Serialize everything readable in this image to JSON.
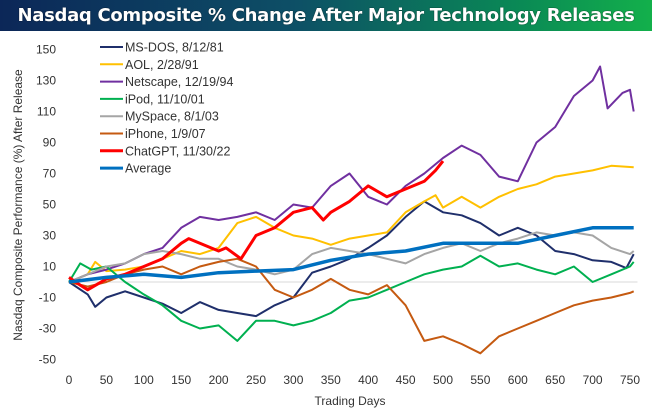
{
  "chart_data": {
    "type": "line",
    "title": "Nasdaq Composite % Change After Major Technology Releases",
    "xlabel": "Trading Days",
    "ylabel": "Nasdaq Composite Performance (%) After Release",
    "xlim": [
      0,
      760
    ],
    "ylim": [
      -50,
      150
    ],
    "xticks": [
      0,
      50,
      100,
      150,
      200,
      250,
      300,
      350,
      400,
      450,
      500,
      550,
      600,
      650,
      700,
      750
    ],
    "yticks": [
      150,
      130,
      110,
      90,
      70,
      50,
      30,
      10,
      -10,
      -30,
      -50
    ],
    "grid": false,
    "zero_line": true,
    "legend": "top-left",
    "series": [
      {
        "name": "MS-DOS, 8/12/81",
        "color": "#1f2f6b",
        "width": 2,
        "x": [
          0,
          25,
          35,
          50,
          75,
          100,
          125,
          150,
          175,
          200,
          225,
          250,
          275,
          300,
          325,
          350,
          375,
          400,
          425,
          450,
          475,
          500,
          525,
          550,
          575,
          600,
          625,
          650,
          675,
          700,
          725,
          745,
          755
        ],
        "y": [
          0,
          -8,
          -16,
          -10,
          -6,
          -10,
          -14,
          -20,
          -13,
          -18,
          -20,
          -22,
          -15,
          -10,
          6,
          10,
          15,
          22,
          30,
          42,
          52,
          45,
          43,
          38,
          30,
          35,
          30,
          20,
          18,
          14,
          13,
          9,
          18
        ]
      },
      {
        "name": "AOL, 2/28/91",
        "color": "#ffc000",
        "width": 2,
        "x": [
          0,
          25,
          35,
          50,
          75,
          100,
          125,
          150,
          175,
          200,
          225,
          250,
          275,
          300,
          325,
          350,
          375,
          400,
          425,
          450,
          475,
          490,
          500,
          525,
          550,
          575,
          600,
          625,
          650,
          675,
          700,
          725,
          755
        ],
        "y": [
          0,
          5,
          13,
          7,
          8,
          10,
          15,
          20,
          18,
          22,
          38,
          42,
          35,
          30,
          28,
          24,
          28,
          30,
          32,
          45,
          52,
          56,
          48,
          55,
          48,
          55,
          60,
          63,
          68,
          70,
          72,
          75,
          74
        ]
      },
      {
        "name": "Netscape, 12/19/94",
        "color": "#7030a0",
        "width": 2,
        "x": [
          0,
          25,
          50,
          75,
          100,
          125,
          150,
          175,
          200,
          225,
          250,
          275,
          300,
          325,
          350,
          375,
          400,
          425,
          450,
          475,
          500,
          525,
          550,
          575,
          600,
          625,
          650,
          675,
          700,
          710,
          720,
          740,
          750,
          755
        ],
        "y": [
          0,
          5,
          8,
          12,
          18,
          22,
          35,
          42,
          40,
          42,
          45,
          40,
          50,
          48,
          62,
          70,
          55,
          50,
          62,
          70,
          80,
          88,
          82,
          68,
          65,
          90,
          100,
          120,
          130,
          139,
          112,
          122,
          124,
          110
        ]
      },
      {
        "name": "iPod, 11/10/01",
        "color": "#00b050",
        "width": 2,
        "x": [
          0,
          15,
          30,
          50,
          75,
          100,
          125,
          150,
          175,
          200,
          225,
          250,
          275,
          300,
          325,
          350,
          375,
          400,
          425,
          450,
          475,
          500,
          525,
          550,
          575,
          600,
          625,
          650,
          675,
          700,
          725,
          750,
          755
        ],
        "y": [
          0,
          12,
          8,
          10,
          0,
          -8,
          -15,
          -25,
          -30,
          -28,
          -38,
          -25,
          -25,
          -28,
          -25,
          -20,
          -12,
          -10,
          -5,
          0,
          5,
          8,
          10,
          17,
          10,
          12,
          8,
          5,
          10,
          0,
          5,
          10,
          13
        ]
      },
      {
        "name": "MySpace, 8/1/03",
        "color": "#a5a5a5",
        "width": 2,
        "x": [
          0,
          25,
          50,
          75,
          100,
          125,
          150,
          175,
          200,
          225,
          250,
          275,
          300,
          325,
          350,
          375,
          400,
          425,
          450,
          475,
          500,
          525,
          550,
          575,
          600,
          625,
          650,
          675,
          700,
          725,
          750,
          755
        ],
        "y": [
          0,
          5,
          10,
          12,
          18,
          20,
          18,
          15,
          15,
          10,
          8,
          5,
          8,
          18,
          22,
          20,
          18,
          15,
          12,
          18,
          22,
          25,
          20,
          25,
          28,
          32,
          30,
          32,
          30,
          22,
          18,
          20
        ]
      },
      {
        "name": "iPhone, 1/9/07",
        "color": "#c55a11",
        "width": 2,
        "x": [
          0,
          25,
          50,
          75,
          100,
          125,
          150,
          175,
          200,
          225,
          250,
          275,
          300,
          325,
          350,
          375,
          400,
          425,
          450,
          475,
          500,
          525,
          550,
          575,
          600,
          625,
          650,
          675,
          700,
          725,
          750,
          755
        ],
        "y": [
          0,
          -3,
          0,
          5,
          8,
          10,
          5,
          10,
          13,
          15,
          10,
          -5,
          -10,
          -5,
          2,
          -5,
          -8,
          -2,
          -15,
          -38,
          -35,
          -40,
          -46,
          -35,
          -30,
          -25,
          -20,
          -15,
          -12,
          -10,
          -7,
          -6
        ]
      },
      {
        "name": "ChatGPT, 11/30/22",
        "color": "#ff0000",
        "width": 3,
        "x": [
          0,
          15,
          25,
          50,
          75,
          100,
          125,
          150,
          160,
          175,
          200,
          210,
          230,
          250,
          275,
          300,
          325,
          340,
          350,
          375,
          400,
          425,
          450,
          475,
          490,
          500
        ],
        "y": [
          3,
          -2,
          -5,
          2,
          5,
          10,
          15,
          25,
          28,
          25,
          20,
          22,
          15,
          30,
          35,
          45,
          48,
          40,
          45,
          52,
          62,
          55,
          60,
          65,
          72,
          78
        ]
      },
      {
        "name": "Average",
        "color": "#0070c0",
        "width": 3.5,
        "x": [
          0,
          50,
          100,
          150,
          200,
          250,
          300,
          350,
          400,
          450,
          500,
          550,
          600,
          650,
          700,
          755
        ],
        "y": [
          0,
          3,
          5,
          3,
          6,
          7,
          8,
          14,
          18,
          20,
          25,
          25,
          25,
          30,
          35,
          35
        ]
      }
    ]
  }
}
